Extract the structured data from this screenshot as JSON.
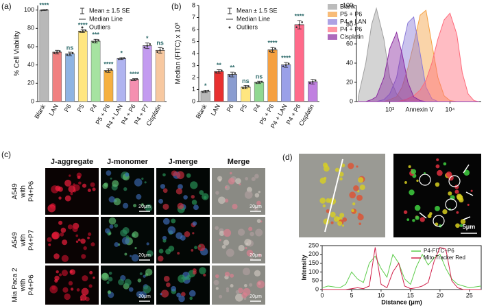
{
  "panel_labels": [
    "(a)",
    "(b)",
    "(c)",
    "(d)"
  ],
  "chart_data": [
    {
      "type": "bar",
      "ylabel": "% Cell Viability",
      "categories": [
        "Blank",
        "LAN",
        "P6",
        "P5",
        "P4",
        "P5 + P6",
        "P4 + LAN",
        "P4 + P6",
        "P4 + P7",
        "Cisplatin"
      ],
      "values": [
        100,
        54,
        52,
        77,
        66,
        34,
        47,
        24,
        61,
        56
      ],
      "errors": [
        0.5,
        2,
        2,
        1.5,
        2,
        2,
        1,
        1,
        3,
        3
      ],
      "annotations": [
        "****",
        null,
        "ns",
        "****",
        "***",
        "****",
        "*",
        "****",
        "*",
        "ns"
      ],
      "colors": [
        "#b8b8b8",
        "#f08080",
        "#8fb4e3",
        "#ffe680",
        "#a6e3a1",
        "#f5b041",
        "#b0b4f0",
        "#f58fb0",
        "#c39bf0",
        "#f7c8a0"
      ],
      "ylim": [
        0,
        105
      ],
      "yticks": [
        0,
        20,
        40,
        60,
        80,
        100
      ],
      "legend": [
        "Mean ± 1.5 SE",
        "Median Line",
        "Outliers"
      ]
    },
    {
      "type": "bar",
      "ylabel": "Median (FITC) x 10³",
      "categories": [
        "Blank",
        "LAN",
        "P6",
        "P5",
        "P4",
        "P5 + P6",
        "P4 + LAN",
        "P4 + P6",
        "Cisplatin"
      ],
      "values": [
        0.85,
        2.5,
        2.25,
        1.2,
        1.6,
        4.3,
        3.05,
        6.4,
        1.65
      ],
      "errors": [
        0.1,
        0.15,
        0.2,
        0.15,
        0.1,
        0.2,
        0.2,
        0.35,
        0.2
      ],
      "annotations": [
        "*",
        "**",
        "**",
        "ns",
        "ns",
        "****",
        "****",
        "****",
        null
      ],
      "colors": [
        "#b8b8b8",
        "#e83030",
        "#8a9cd0",
        "#ffe680",
        "#90d890",
        "#f5a040",
        "#9aa0e8",
        "#ff6a8a",
        "#c080e0"
      ],
      "ylim": [
        0,
        8
      ],
      "yticks": [
        0,
        1,
        2,
        3,
        4,
        5,
        6,
        7,
        8
      ],
      "legend": [
        "Mean ± 1.5 SE",
        "Median Line",
        "Outliers"
      ]
    },
    {
      "type": "area",
      "xlabel": "Annexin V",
      "log_x": true,
      "x": [
        300,
        400,
        500,
        600,
        800,
        1000,
        1300,
        1600,
        2000,
        2500,
        3200,
        4000,
        5000,
        6300,
        8000,
        10000,
        13000,
        16000,
        20000,
        25000,
        30000
      ],
      "series": [
        {
          "name": "Blank",
          "color": "#a0a0a0",
          "values": [
            5,
            40,
            80,
            97,
            65,
            25,
            8,
            2,
            0,
            0,
            0,
            0,
            0,
            0,
            0,
            0,
            0,
            0,
            0,
            0,
            0
          ]
        },
        {
          "name": "P5 + P6",
          "color": "#f5a040",
          "values": [
            0,
            0,
            0,
            0,
            0,
            2,
            5,
            15,
            35,
            60,
            90,
            95,
            60,
            25,
            6,
            1,
            0,
            0,
            0,
            0,
            0
          ]
        },
        {
          "name": "P4 + LAN",
          "color": "#8a7ad8",
          "values": [
            0,
            0,
            0,
            0,
            2,
            8,
            25,
            55,
            82,
            88,
            50,
            15,
            3,
            0,
            0,
            0,
            0,
            0,
            0,
            0,
            0
          ]
        },
        {
          "name": "P4 + P6",
          "color": "#ff6a7a",
          "values": [
            0,
            0,
            0,
            0,
            0,
            0,
            0,
            1,
            3,
            6,
            12,
            22,
            40,
            65,
            85,
            92,
            70,
            30,
            8,
            1,
            0
          ]
        },
        {
          "name": "Cisplatin",
          "color": "#8a2aa0",
          "values": [
            0,
            0,
            2,
            5,
            25,
            55,
            72,
            50,
            20,
            5,
            1,
            0,
            0,
            0,
            0,
            0,
            0,
            0,
            0,
            0,
            0
          ]
        }
      ],
      "xlim": [
        280,
        33000
      ],
      "xticks": [
        {
          "value": 1000,
          "label": "10³"
        },
        {
          "value": 10000,
          "label": "10⁴"
        }
      ],
      "ylim": [
        0,
        100
      ],
      "yticks": [
        0,
        20,
        40,
        60,
        80,
        100
      ]
    },
    {
      "type": "line",
      "xlabel": "Distance (μm)",
      "ylabel": "Intensity",
      "x": [
        0,
        1,
        2,
        3,
        4,
        5,
        6,
        7,
        8,
        9,
        10,
        11,
        12,
        13,
        14,
        15,
        16,
        17,
        18,
        19,
        20,
        21,
        22,
        23,
        24,
        25,
        26,
        27
      ],
      "series": [
        {
          "name": "P4-FITC+P6",
          "color": "#5ccc4a",
          "values": [
            10,
            20,
            15,
            10,
            30,
            100,
            60,
            40,
            150,
            190,
            120,
            70,
            200,
            150,
            60,
            30,
            130,
            200,
            140,
            180,
            200,
            120,
            60,
            30,
            20,
            10,
            15,
            20
          ]
        },
        {
          "name": "Mito Tracker Red",
          "color": "#d0204a",
          "values": [
            0,
            0,
            0,
            0,
            0,
            5,
            10,
            5,
            20,
            240,
            30,
            10,
            100,
            150,
            20,
            5,
            10,
            20,
            40,
            160,
            240,
            230,
            50,
            10,
            0,
            0,
            0,
            0
          ]
        }
      ],
      "xlim": [
        0,
        27
      ],
      "xticks": [
        0,
        5,
        10,
        15,
        20,
        25
      ],
      "ylim": [
        0,
        250
      ],
      "yticks": [
        0,
        50,
        100,
        150,
        200,
        250
      ]
    }
  ],
  "microscopy_c": {
    "columns": [
      "J-aggregate",
      "J-monomer",
      "J-merge",
      "Merge"
    ],
    "rows": [
      [
        "A549",
        "with",
        "P4+P6"
      ],
      [
        "A549",
        "with",
        "P4+P7"
      ],
      [
        "Mia Paca 2",
        "with",
        "P4+P6"
      ]
    ],
    "scale_bar": "20μm"
  },
  "microscopy_d": {
    "scale_bar": "5μm"
  }
}
